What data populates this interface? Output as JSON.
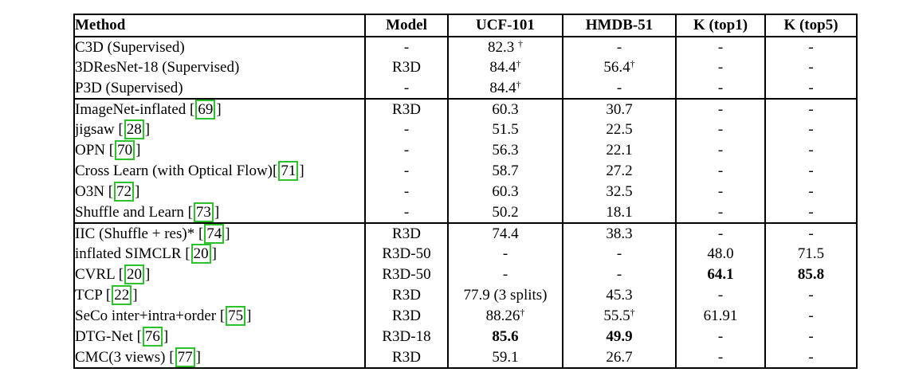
{
  "table": {
    "headers": [
      "Method",
      "Model",
      "UCF-101",
      "HMDB-51",
      "K (top1)",
      "K (top5)"
    ],
    "citation_color": "#2ec12e",
    "citation_brackets": [
      "[",
      "]"
    ],
    "groups": [
      {
        "rows": [
          {
            "method": "C3D (Supervised)",
            "cite": null,
            "cells": [
              "-",
              "82.3 †",
              "-",
              "-",
              "-"
            ],
            "bold": []
          },
          {
            "method": "3DResNet-18 (Supervised)",
            "cite": null,
            "cells": [
              "R3D",
              "84.4†",
              "56.4†",
              "-",
              "-"
            ],
            "bold": []
          },
          {
            "method": "P3D (Supervised)",
            "cite": null,
            "cells": [
              "-",
              "84.4†",
              "-",
              "-",
              "-"
            ],
            "bold": []
          }
        ]
      },
      {
        "rows": [
          {
            "method": "ImageNet-inflated ",
            "cite": "69",
            "cells": [
              "R3D",
              "60.3",
              "30.7",
              "-",
              "-"
            ],
            "bold": []
          },
          {
            "method": "jigsaw ",
            "cite": "28",
            "cells": [
              "-",
              "51.5",
              "22.5",
              "-",
              "-"
            ],
            "bold": []
          },
          {
            "method": "OPN ",
            "cite": "70",
            "cells": [
              "-",
              "56.3",
              "22.1",
              "-",
              "-"
            ],
            "bold": []
          },
          {
            "method": "Cross Learn (with Optical Flow)",
            "cite": "71",
            "cells": [
              "-",
              "58.7",
              "27.2",
              "-",
              "-"
            ],
            "bold": []
          },
          {
            "method": "O3N ",
            "cite": "72",
            "cells": [
              "-",
              "60.3",
              "32.5",
              "-",
              "-"
            ],
            "bold": []
          },
          {
            "method": "Shuffle and Learn ",
            "cite": "73",
            "cells": [
              "-",
              "50.2",
              "18.1",
              "-",
              "-"
            ],
            "bold": []
          }
        ]
      },
      {
        "rows": [
          {
            "method": "IIC (Shuffle + res)* ",
            "cite": "74",
            "cells": [
              "R3D",
              "74.4",
              "38.3",
              "-",
              "-"
            ],
            "bold": []
          },
          {
            "method": "inflated SIMCLR ",
            "cite": "20",
            "cells": [
              "R3D-50",
              "-",
              "-",
              "48.0",
              "71.5"
            ],
            "bold": []
          },
          {
            "method": "CVRL ",
            "cite": "20",
            "cells": [
              "R3D-50",
              "-",
              "-",
              "64.1",
              "85.8"
            ],
            "bold": [
              3,
              4
            ]
          },
          {
            "method": "TCP ",
            "cite": "22",
            "cells": [
              "R3D",
              "77.9 (3 splits)",
              "45.3",
              "-",
              "-"
            ],
            "bold": []
          },
          {
            "method": "SeCo inter+intra+order ",
            "cite": "75",
            "cells": [
              "R3D",
              "88.26†",
              "55.5†",
              "61.91",
              "-"
            ],
            "bold": []
          },
          {
            "method": "DTG-Net ",
            "cite": "76",
            "cells": [
              "R3D-18",
              "85.6",
              "49.9",
              "-",
              "-"
            ],
            "bold": [
              1,
              2
            ]
          },
          {
            "method": "CMC(3 views) ",
            "cite": "77",
            "cells": [
              "R3D",
              "59.1",
              "26.7",
              "-",
              "-"
            ],
            "bold": []
          }
        ]
      }
    ]
  }
}
